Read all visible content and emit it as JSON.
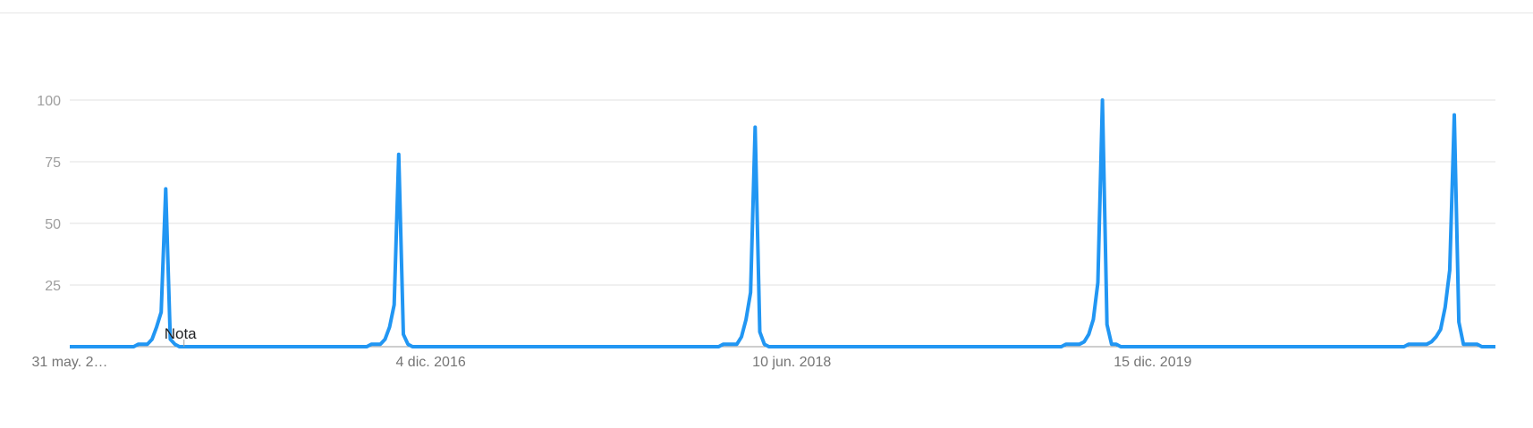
{
  "chart_data": {
    "type": "line",
    "title": "",
    "xlabel": "",
    "ylabel": "",
    "ylim": [
      0,
      100
    ],
    "y_ticks": [
      25,
      50,
      75,
      100
    ],
    "grid": true,
    "x_tick_labels": [
      {
        "label": "31 may. 2…",
        "date": "2015-05-31"
      },
      {
        "label": "4 dic. 2016",
        "date": "2016-12-04"
      },
      {
        "label": "10 jun. 2018",
        "date": "2018-06-10"
      },
      {
        "label": "15 dic. 2019",
        "date": "2019-12-15"
      }
    ],
    "annotation": {
      "label": "Nota",
      "date": "2015-11-22"
    },
    "series": [
      {
        "color": "#2196f3",
        "points": [
          [
            "2015-05-31",
            0
          ],
          [
            "2015-09-06",
            0
          ],
          [
            "2015-09-13",
            1
          ],
          [
            "2015-09-20",
            1
          ],
          [
            "2015-09-27",
            1
          ],
          [
            "2015-10-04",
            3
          ],
          [
            "2015-10-11",
            8
          ],
          [
            "2015-10-18",
            14
          ],
          [
            "2015-10-25",
            64
          ],
          [
            "2015-11-01",
            3
          ],
          [
            "2015-11-08",
            1
          ],
          [
            "2015-11-15",
            0
          ],
          [
            "2016-08-28",
            0
          ],
          [
            "2016-09-04",
            1
          ],
          [
            "2016-09-11",
            1
          ],
          [
            "2016-09-18",
            1
          ],
          [
            "2016-09-25",
            3
          ],
          [
            "2016-10-02",
            8
          ],
          [
            "2016-10-09",
            17
          ],
          [
            "2016-10-16",
            78
          ],
          [
            "2016-10-23",
            5
          ],
          [
            "2016-10-30",
            1
          ],
          [
            "2016-11-06",
            0
          ],
          [
            "2018-02-18",
            0
          ],
          [
            "2018-02-25",
            1
          ],
          [
            "2018-03-04",
            1
          ],
          [
            "2018-03-11",
            1
          ],
          [
            "2018-03-18",
            1
          ],
          [
            "2018-03-25",
            4
          ],
          [
            "2018-04-01",
            11
          ],
          [
            "2018-04-08",
            22
          ],
          [
            "2018-04-15",
            89
          ],
          [
            "2018-04-22",
            6
          ],
          [
            "2018-04-29",
            1
          ],
          [
            "2018-05-06",
            0
          ],
          [
            "2019-07-28",
            0
          ],
          [
            "2019-08-04",
            1
          ],
          [
            "2019-08-11",
            1
          ],
          [
            "2019-08-18",
            1
          ],
          [
            "2019-08-25",
            1
          ],
          [
            "2019-09-01",
            2
          ],
          [
            "2019-09-08",
            5
          ],
          [
            "2019-09-15",
            11
          ],
          [
            "2019-09-22",
            26
          ],
          [
            "2019-09-29",
            100
          ],
          [
            "2019-10-06",
            9
          ],
          [
            "2019-10-13",
            1
          ],
          [
            "2019-10-20",
            1
          ],
          [
            "2019-10-27",
            0
          ],
          [
            "2021-01-03",
            0
          ],
          [
            "2021-01-10",
            1
          ],
          [
            "2021-01-17",
            1
          ],
          [
            "2021-01-24",
            1
          ],
          [
            "2021-01-31",
            1
          ],
          [
            "2021-02-07",
            1
          ],
          [
            "2021-02-14",
            2
          ],
          [
            "2021-02-21",
            4
          ],
          [
            "2021-02-28",
            7
          ],
          [
            "2021-03-07",
            16
          ],
          [
            "2021-03-14",
            31
          ],
          [
            "2021-03-21",
            94
          ],
          [
            "2021-03-28",
            10
          ],
          [
            "2021-04-04",
            1
          ],
          [
            "2021-04-11",
            1
          ],
          [
            "2021-04-18",
            1
          ],
          [
            "2021-04-25",
            1
          ],
          [
            "2021-05-02",
            0
          ],
          [
            "2021-05-23",
            0
          ]
        ]
      }
    ]
  }
}
